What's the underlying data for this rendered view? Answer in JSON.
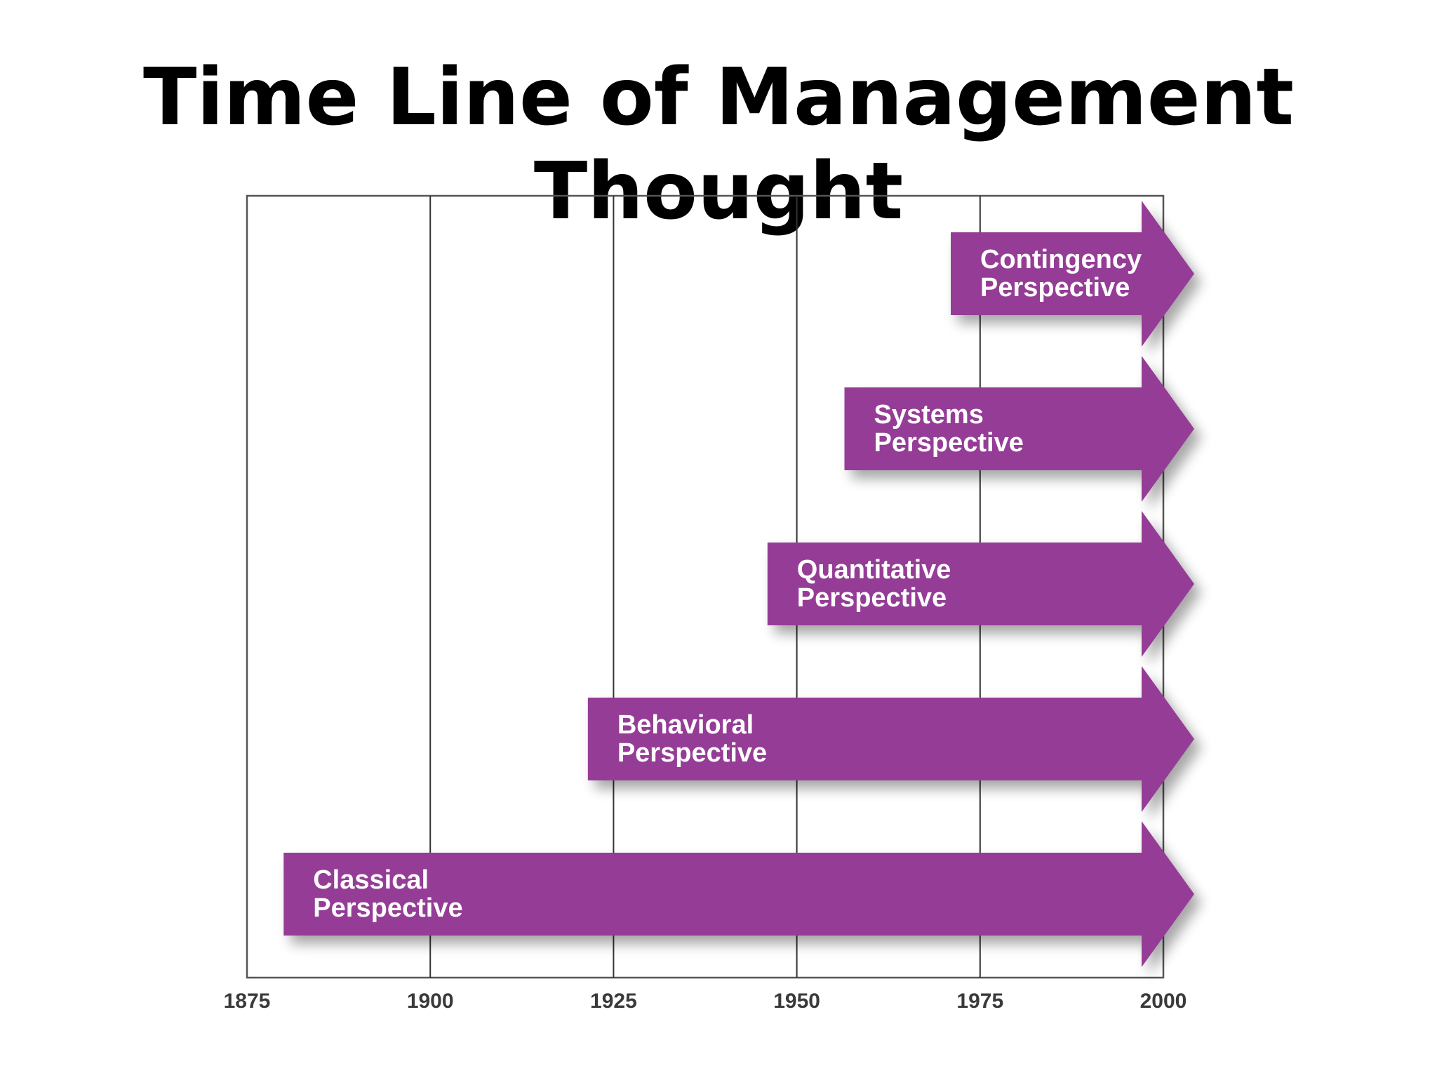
{
  "title": "Time Line of Management Thought",
  "axis": {
    "ticks": [
      "1875",
      "1900",
      "1925",
      "1950",
      "1975",
      "2000"
    ],
    "range": [
      1875,
      2000
    ]
  },
  "colors": {
    "arrow_fill": "#953c96",
    "arrow_text": "#ffffff",
    "frame": "#555555",
    "gridline": "#333333"
  },
  "perspectives": [
    {
      "line1": "Contingency",
      "line2": "Perspective",
      "start": 1971,
      "end": 2000
    },
    {
      "line1": "Systems",
      "line2": "Perspective",
      "start": 1956.5,
      "end": 2000
    },
    {
      "line1": "Quantitative",
      "line2": "Perspective",
      "start": 1946,
      "end": 2000
    },
    {
      "line1": "Behavioral",
      "line2": "Perspective",
      "start": 1921.5,
      "end": 2000
    },
    {
      "line1": "Classical",
      "line2": "Perspective",
      "start": 1880,
      "end": 2000
    }
  ]
}
